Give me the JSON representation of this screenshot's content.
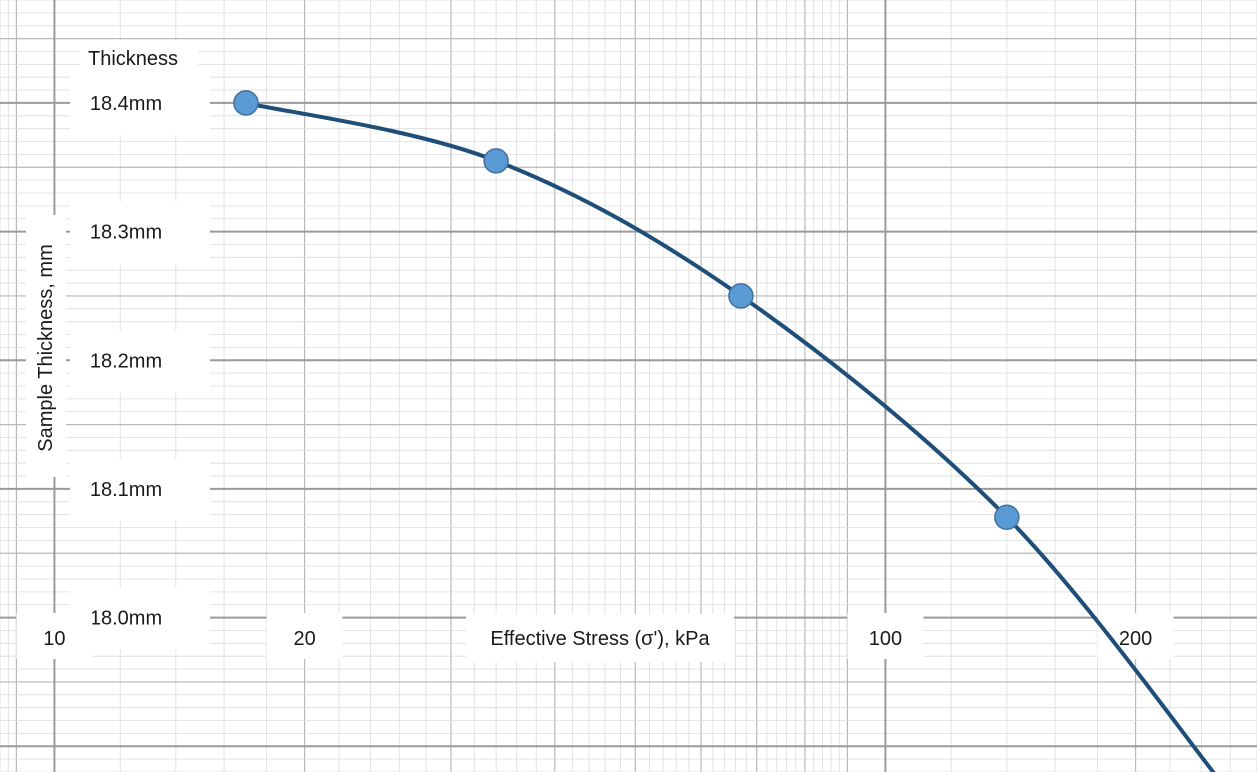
{
  "chart_data": {
    "type": "line",
    "title": "",
    "xlabel": "Effective Stress (σ'), kPa",
    "ylabel": "Sample Thickness, mm",
    "x_scale": "log",
    "xlim": [
      8.6,
      280
    ],
    "ylim": [
      17.88,
      18.48
    ],
    "grid": true,
    "legend": "none",
    "line_color": "#1f4e79",
    "marker_color": "#5b9bd5",
    "annotations": [
      {
        "key": "thickness",
        "text": "Thickness",
        "x": 12.5,
        "y": 18.46
      }
    ],
    "y_ticks": [
      {
        "value": 18.4,
        "label": "18.4mm"
      },
      {
        "value": 18.3,
        "label": "18.3mm"
      },
      {
        "value": 18.2,
        "label": "18.2mm"
      },
      {
        "value": 18.1,
        "label": "18.1mm"
      },
      {
        "value": 18.0,
        "label": "18.0mm"
      }
    ],
    "x_ticks": [
      {
        "value": 10,
        "label": "10"
      },
      {
        "value": 20,
        "label": "20"
      },
      {
        "value": 100,
        "label": "100"
      },
      {
        "value": 200,
        "label": "200"
      }
    ],
    "series": [
      {
        "x": [
          17,
          34,
          67,
          140,
          255
        ],
        "y": [
          18.4,
          18.355,
          18.25,
          18.078,
          17.87
        ]
      }
    ]
  }
}
